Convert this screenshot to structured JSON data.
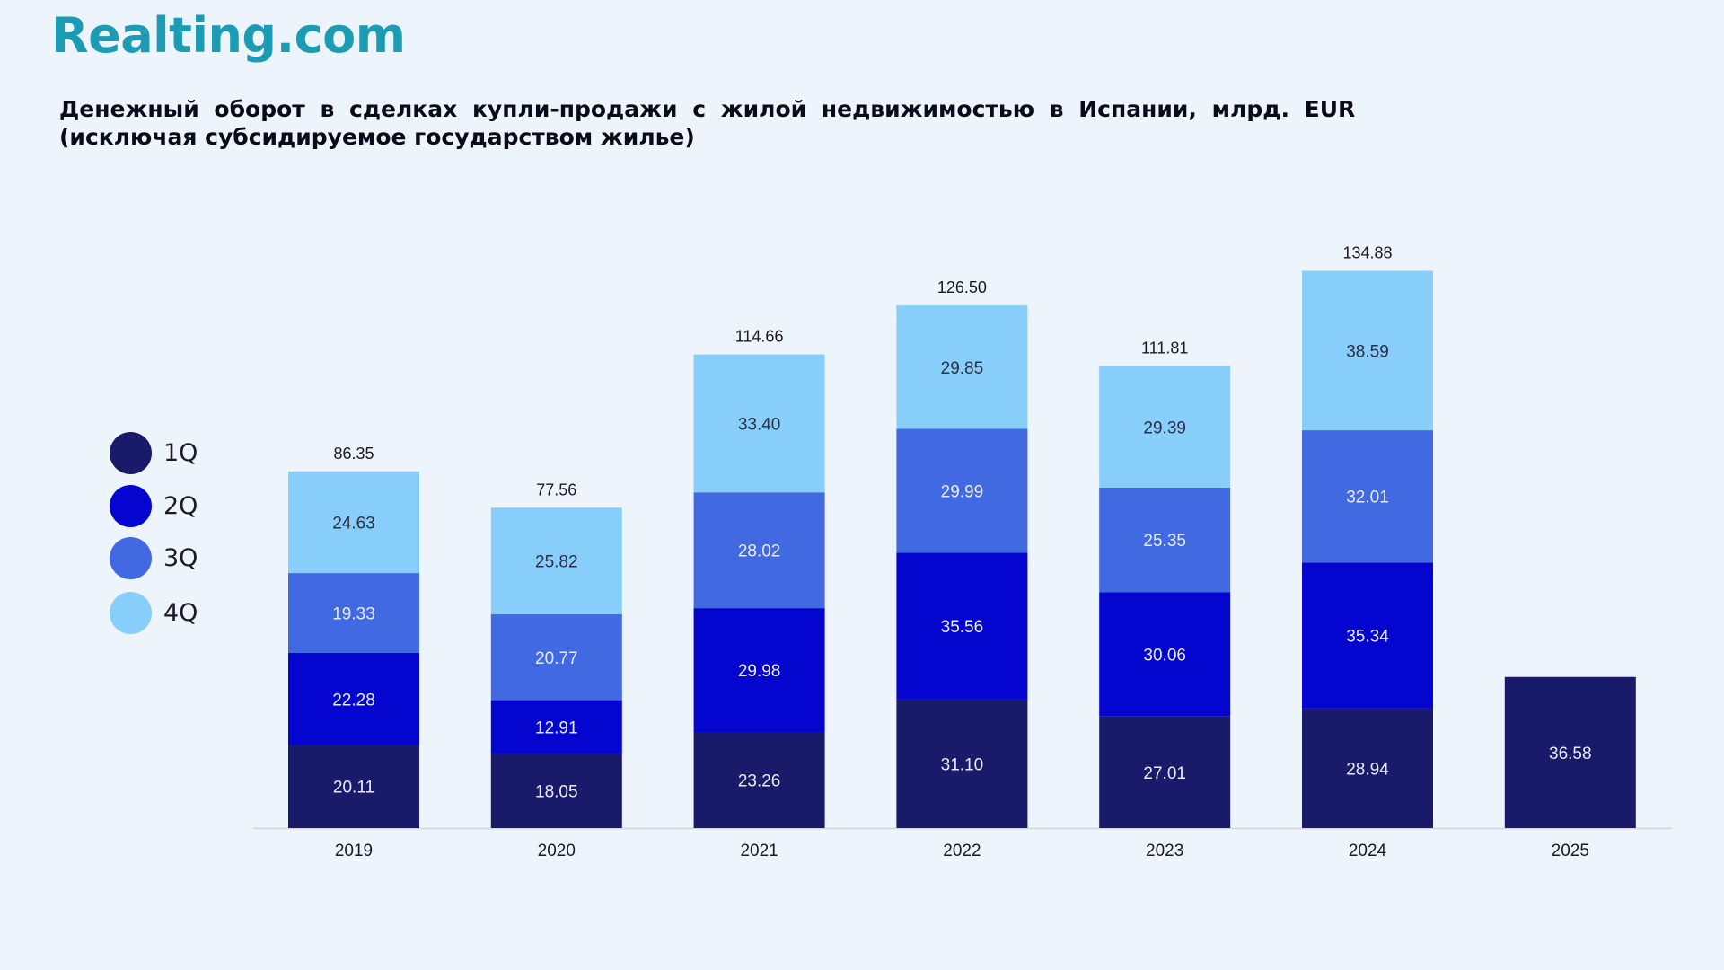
{
  "brand": {
    "logo_text": "Realting.com"
  },
  "title": {
    "line1": "Денежный оборот в сделках купли-продажи с жилой недвижимостью в Испании, млрд. EUR",
    "line2": "(исключая субсидируемое государством жилье)"
  },
  "legend": [
    {
      "label": "1Q",
      "color": "#1a1a6b"
    },
    {
      "label": "2Q",
      "color": "#0505d0"
    },
    {
      "label": "3Q",
      "color": "#4169e1"
    },
    {
      "label": "4Q",
      "color": "#87cefa"
    }
  ],
  "chart_data": {
    "type": "bar",
    "stacked": true,
    "categories": [
      "2019",
      "2020",
      "2021",
      "2022",
      "2023",
      "2024",
      "2025"
    ],
    "series": [
      {
        "name": "1Q",
        "color": "#1a1a6b",
        "values": [
          20.11,
          18.05,
          23.26,
          31.1,
          27.01,
          28.94,
          36.58
        ]
      },
      {
        "name": "2Q",
        "color": "#0505d0",
        "values": [
          22.28,
          12.91,
          29.98,
          35.56,
          30.06,
          35.34,
          null
        ]
      },
      {
        "name": "3Q",
        "color": "#4169e1",
        "values": [
          19.33,
          20.77,
          28.02,
          29.99,
          25.35,
          32.01,
          null
        ]
      },
      {
        "name": "4Q",
        "color": "#87cefa",
        "values": [
          24.63,
          25.82,
          33.4,
          29.85,
          29.39,
          38.59,
          null
        ]
      }
    ],
    "value_labels": [
      [
        "20.11",
        "22.28",
        "19.33",
        "24.63"
      ],
      [
        "18.05",
        "12.91",
        "20.77",
        "25.82"
      ],
      [
        "23.26",
        "29.98",
        "28.02",
        "33.40"
      ],
      [
        "31.10",
        "35.56",
        "29.99",
        "29.85"
      ],
      [
        "27.01",
        "30.06",
        "25.35",
        "29.39"
      ],
      [
        "28.94",
        "35.34",
        "32.01",
        "38.59"
      ],
      [
        "36.58",
        null,
        null,
        null
      ]
    ],
    "totals": [
      "86.35",
      "77.56",
      "114.66",
      "126.50",
      "111.81",
      "134.88",
      null
    ],
    "ylim": [
      0,
      150
    ],
    "grid": false,
    "legend_position": "left"
  }
}
